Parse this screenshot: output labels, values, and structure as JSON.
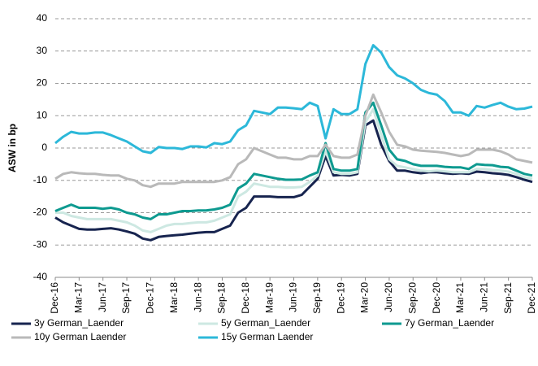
{
  "chart_data": {
    "type": "line",
    "y_label": "ASW in bp",
    "categories": [
      "Dec-16",
      null,
      null,
      "Mar-17",
      null,
      null,
      "Jun-17",
      null,
      null,
      "Sep-17",
      null,
      null,
      "Dec-17",
      null,
      null,
      "Mar-18",
      null,
      null,
      "Jun-18",
      null,
      null,
      "Sep-18",
      null,
      null,
      "Dec-18",
      null,
      null,
      "Mar-19",
      null,
      null,
      "Jun-19",
      null,
      null,
      "Sep-19",
      null,
      null,
      "Dec-19",
      null,
      null,
      "Mar-20",
      null,
      null,
      "Jun-20",
      null,
      null,
      "Sep-20",
      null,
      null,
      "Dec-20",
      null,
      null,
      "Mar-21",
      null,
      null,
      "Jun-21",
      null,
      null,
      "Sep-21",
      null,
      null,
      "Dec-21"
    ],
    "series": [
      {
        "name": "3y German_Laender",
        "color": "#17244f",
        "values": [
          -21.5,
          -23,
          -24,
          -25,
          -25.2,
          -25.2,
          -25,
          -24.8,
          -25.2,
          -25.8,
          -26.5,
          -28,
          -28.5,
          -27.5,
          -27.2,
          -27,
          -26.8,
          -26.5,
          -26.2,
          -26,
          -26,
          -25,
          -24,
          -20,
          -18.5,
          -15,
          -15,
          -15,
          -15.2,
          -15.2,
          -15.2,
          -14.5,
          -12,
          -9.5,
          -2.5,
          -8.5,
          -8.3,
          -8.5,
          -8,
          7,
          8.5,
          1,
          -4,
          -7,
          -7,
          -7.5,
          -7.8,
          -7.5,
          -7.5,
          -7.8,
          -8,
          -7.8,
          -8,
          -7.3,
          -7.5,
          -7.8,
          -8,
          -8.3,
          -9,
          -9.8,
          -10.5
        ]
      },
      {
        "name": "5y German_Laender",
        "color": "#cde8e2",
        "values": [
          -20,
          -20,
          -21,
          -21.5,
          -22,
          -22,
          -22,
          -22,
          -22.5,
          -23,
          -24,
          -25.5,
          -26,
          -25,
          -24,
          -23.5,
          -23.5,
          -23.2,
          -23,
          -23,
          -22.5,
          -21.5,
          -20.5,
          -15,
          -13.5,
          -11,
          -11.5,
          -12,
          -12,
          -12.2,
          -12.2,
          -12,
          -10.5,
          -8.5,
          -1,
          -7.5,
          -8,
          -8,
          -7.5,
          8,
          12,
          4,
          -3.5,
          -5.5,
          -6,
          -6.5,
          -7,
          -7.2,
          -7,
          -7.2,
          -7.5,
          -7.5,
          -7.5,
          -6.5,
          -6.5,
          -6.8,
          -7,
          -7.3,
          -8,
          -9,
          -9.5
        ]
      },
      {
        "name": "7y German_Laender",
        "color": "#0e9a90",
        "values": [
          -19.5,
          -18.5,
          -17.5,
          -18.5,
          -18.5,
          -18.5,
          -18.8,
          -18.5,
          -19,
          -20,
          -20.5,
          -21.5,
          -22,
          -20.5,
          -20.5,
          -20,
          -19.5,
          -19.5,
          -19.3,
          -19.3,
          -19,
          -18.5,
          -17.5,
          -12.5,
          -11,
          -8,
          -8.5,
          -9,
          -9.5,
          -9.8,
          -9.8,
          -9.7,
          -8.5,
          -7.5,
          1.5,
          -6.5,
          -7,
          -7,
          -6.5,
          11,
          14,
          7,
          -0.5,
          -3.5,
          -4,
          -5,
          -5.5,
          -5.5,
          -5.5,
          -5.8,
          -6,
          -6,
          -6.5,
          -5,
          -5.2,
          -5.3,
          -5.8,
          -6,
          -7,
          -8,
          -8.5
        ]
      },
      {
        "name": "10y German Laender",
        "color": "#b9b9b9",
        "values": [
          -9.5,
          -8,
          -7.5,
          -7.8,
          -8,
          -8,
          -8.3,
          -8.5,
          -8.5,
          -9.5,
          -10,
          -11.5,
          -12,
          -11,
          -11,
          -11,
          -10.5,
          -10.5,
          -10.5,
          -10.5,
          -10.5,
          -10,
          -9,
          -5,
          -3.5,
          0,
          -1,
          -2,
          -3,
          -3,
          -3.5,
          -3.5,
          -2.5,
          -2.5,
          1,
          -2.5,
          -3,
          -3,
          -2,
          10,
          16.5,
          11,
          5,
          1,
          0.5,
          -0.5,
          -0.8,
          -1,
          -1.2,
          -1.5,
          -2,
          -2.5,
          -2,
          -0.5,
          -0.5,
          -0.5,
          -1,
          -2,
          -3.5,
          -4,
          -4.5
        ]
      },
      {
        "name": "15y German Laender",
        "color": "#2cb8d9",
        "values": [
          1.5,
          3.5,
          5,
          4.5,
          4.5,
          4.8,
          4.8,
          4,
          3,
          2,
          0.5,
          -1,
          -1.5,
          0.3,
          0,
          0,
          -0.3,
          0.5,
          0.5,
          0.2,
          1.5,
          1.2,
          2,
          5.5,
          7,
          11.5,
          11,
          10.5,
          12.5,
          12.5,
          12.3,
          12,
          14,
          13,
          3,
          12,
          10.5,
          10.5,
          12,
          26,
          31.8,
          29.5,
          25,
          22.5,
          21.5,
          20,
          18,
          17,
          16.5,
          14.5,
          11,
          11,
          10,
          13,
          12.5,
          13.3,
          14,
          12.8,
          12,
          12.2,
          12.8
        ]
      }
    ],
    "ylim": [
      -40,
      40
    ],
    "yticks": [
      -40,
      -30,
      -20,
      -10,
      0,
      10,
      20,
      30,
      40
    ],
    "grid": true
  }
}
